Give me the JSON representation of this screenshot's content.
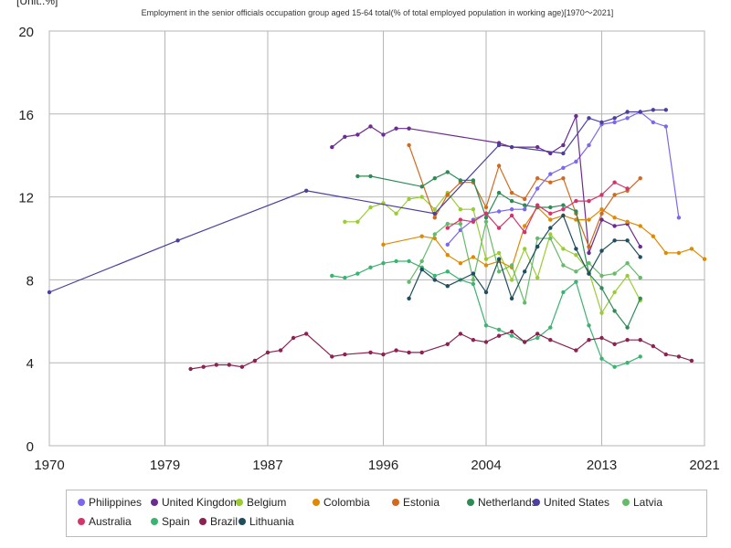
{
  "unit_label": "[Unit:.%]",
  "chart_data": {
    "type": "line",
    "title": "Employment in the senior officials occupation group aged 15-64 total(% of total employed population in working age)[1970～2021]",
    "xlim": [
      1970,
      2021
    ],
    "ylim": [
      0,
      20
    ],
    "x_ticks": [
      1970,
      1979,
      1987,
      1996,
      2004,
      2013,
      2021
    ],
    "y_ticks": [
      0,
      4,
      8,
      12,
      16,
      20
    ],
    "grid": true,
    "legend_position": "bottom",
    "series": [
      {
        "name": "Philippines",
        "color": "#7b68ee",
        "points": [
          [
            2001,
            9.7
          ],
          [
            2002,
            10.4
          ],
          [
            2003,
            10.9
          ],
          [
            2004,
            11.2
          ],
          [
            2005,
            11.3
          ],
          [
            2006,
            11.4
          ],
          [
            2007,
            11.4
          ],
          [
            2008,
            12.4
          ],
          [
            2009,
            13.1
          ],
          [
            2010,
            13.4
          ],
          [
            2011,
            13.7
          ],
          [
            2012,
            14.5
          ],
          [
            2013,
            15.5
          ],
          [
            2014,
            15.6
          ],
          [
            2015,
            15.8
          ],
          [
            2016,
            16.1
          ],
          [
            2017,
            15.6
          ],
          [
            2018,
            15.4
          ],
          [
            2019,
            11.0
          ]
        ]
      },
      {
        "name": "United Kingdom",
        "color": "#6a2c91",
        "points": [
          [
            1992,
            14.4
          ],
          [
            1993,
            14.9
          ],
          [
            1994,
            15.0
          ],
          [
            1995,
            15.4
          ],
          [
            1996,
            15.0
          ],
          [
            1997,
            15.3
          ],
          [
            1998,
            15.3
          ],
          [
            2005,
            14.6
          ],
          [
            2006,
            14.4
          ],
          [
            2008,
            14.4
          ],
          [
            2009,
            14.1
          ],
          [
            2010,
            14.5
          ],
          [
            2011,
            15.9
          ],
          [
            2012,
            9.3
          ],
          [
            2013,
            10.9
          ],
          [
            2014,
            10.6
          ],
          [
            2015,
            10.7
          ],
          [
            2016,
            9.6
          ]
        ]
      },
      {
        "name": "Belgium",
        "color": "#9acd32",
        "points": [
          [
            1993,
            10.8
          ],
          [
            1994,
            10.8
          ],
          [
            1995,
            11.5
          ],
          [
            1996,
            11.7
          ],
          [
            1997,
            11.2
          ],
          [
            1998,
            11.9
          ],
          [
            1999,
            12.0
          ],
          [
            2000,
            11.4
          ],
          [
            2001,
            12.2
          ],
          [
            2002,
            11.4
          ],
          [
            2003,
            11.4
          ],
          [
            2004,
            9.0
          ],
          [
            2005,
            9.3
          ],
          [
            2006,
            8.0
          ],
          [
            2007,
            9.5
          ],
          [
            2008,
            8.1
          ],
          [
            2009,
            10.2
          ],
          [
            2010,
            9.5
          ],
          [
            2011,
            9.2
          ],
          [
            2012,
            8.4
          ],
          [
            2013,
            6.4
          ],
          [
            2014,
            7.4
          ],
          [
            2015,
            8.2
          ],
          [
            2016,
            7.0
          ]
        ]
      },
      {
        "name": "Colombia",
        "color": "#e08a00",
        "points": [
          [
            1996,
            9.7
          ],
          [
            1999,
            10.1
          ],
          [
            2000,
            10.0
          ],
          [
            2001,
            9.2
          ],
          [
            2002,
            8.8
          ],
          [
            2003,
            9.1
          ],
          [
            2004,
            8.7
          ],
          [
            2005,
            8.9
          ],
          [
            2006,
            8.6
          ],
          [
            2007,
            10.6
          ],
          [
            2008,
            11.5
          ],
          [
            2009,
            10.9
          ],
          [
            2010,
            11.1
          ],
          [
            2011,
            10.9
          ],
          [
            2012,
            10.9
          ],
          [
            2013,
            11.4
          ],
          [
            2014,
            11.0
          ],
          [
            2015,
            10.8
          ],
          [
            2016,
            10.6
          ],
          [
            2017,
            10.1
          ],
          [
            2018,
            9.3
          ],
          [
            2019,
            9.3
          ],
          [
            2020,
            9.5
          ],
          [
            2021,
            9.0
          ]
        ]
      },
      {
        "name": "Estonia",
        "color": "#d2691e",
        "points": [
          [
            1998,
            14.5
          ],
          [
            2000,
            11.0
          ],
          [
            2001,
            12.1
          ],
          [
            2002,
            12.7
          ],
          [
            2003,
            12.7
          ],
          [
            2004,
            11.5
          ],
          [
            2005,
            13.5
          ],
          [
            2006,
            12.2
          ],
          [
            2007,
            11.9
          ],
          [
            2008,
            12.9
          ],
          [
            2009,
            12.7
          ],
          [
            2010,
            12.9
          ],
          [
            2011,
            11.2
          ],
          [
            2012,
            9.6
          ],
          [
            2013,
            11.2
          ],
          [
            2014,
            12.1
          ],
          [
            2015,
            12.3
          ],
          [
            2016,
            12.9
          ]
        ]
      },
      {
        "name": "Netherlands",
        "color": "#2e8b57",
        "points": [
          [
            1994,
            13.0
          ],
          [
            1995,
            13.0
          ],
          [
            1999,
            12.5
          ],
          [
            2000,
            12.9
          ],
          [
            2001,
            13.2
          ],
          [
            2002,
            12.8
          ],
          [
            2003,
            12.8
          ],
          [
            2004,
            11.0
          ],
          [
            2005,
            12.2
          ],
          [
            2006,
            11.8
          ],
          [
            2007,
            11.6
          ],
          [
            2008,
            11.5
          ],
          [
            2009,
            11.5
          ],
          [
            2010,
            11.6
          ],
          [
            2011,
            11.3
          ],
          [
            2012,
            8.3
          ],
          [
            2013,
            7.6
          ],
          [
            2014,
            6.5
          ],
          [
            2015,
            5.7
          ],
          [
            2016,
            7.1
          ]
        ]
      },
      {
        "name": "United States",
        "color": "#4b3f9f",
        "points": [
          [
            1970,
            7.4
          ],
          [
            1980,
            9.9
          ],
          [
            1990,
            12.3
          ],
          [
            2000,
            11.2
          ],
          [
            2005,
            14.5
          ],
          [
            2010,
            14.1
          ],
          [
            2012,
            15.8
          ],
          [
            2013,
            15.6
          ],
          [
            2014,
            15.8
          ],
          [
            2015,
            16.1
          ],
          [
            2016,
            16.1
          ],
          [
            2017,
            16.2
          ],
          [
            2018,
            16.2
          ]
        ]
      },
      {
        "name": "Latvia",
        "color": "#66bb6a",
        "points": [
          [
            1998,
            7.9
          ],
          [
            1999,
            8.9
          ],
          [
            2000,
            10.2
          ],
          [
            2001,
            10.7
          ],
          [
            2002,
            10.7
          ],
          [
            2003,
            8.0
          ],
          [
            2004,
            10.8
          ],
          [
            2005,
            8.4
          ],
          [
            2006,
            8.7
          ],
          [
            2007,
            6.9
          ],
          [
            2008,
            10.0
          ],
          [
            2009,
            10.0
          ],
          [
            2010,
            8.7
          ],
          [
            2011,
            8.4
          ],
          [
            2012,
            8.8
          ],
          [
            2013,
            8.2
          ],
          [
            2014,
            8.3
          ],
          [
            2015,
            8.8
          ],
          [
            2016,
            8.1
          ]
        ]
      },
      {
        "name": "Australia",
        "color": "#d6336c",
        "points": [
          [
            2001,
            10.5
          ],
          [
            2002,
            10.9
          ],
          [
            2003,
            10.8
          ],
          [
            2004,
            11.2
          ],
          [
            2005,
            10.5
          ],
          [
            2006,
            11.1
          ],
          [
            2007,
            10.3
          ],
          [
            2008,
            11.6
          ],
          [
            2009,
            11.2
          ],
          [
            2010,
            11.4
          ],
          [
            2011,
            11.8
          ],
          [
            2012,
            11.8
          ],
          [
            2013,
            12.1
          ],
          [
            2014,
            12.7
          ],
          [
            2015,
            12.4
          ]
        ]
      },
      {
        "name": "Spain",
        "color": "#3cb371",
        "points": [
          [
            1992,
            8.2
          ],
          [
            1993,
            8.1
          ],
          [
            1994,
            8.3
          ],
          [
            1995,
            8.6
          ],
          [
            1996,
            8.8
          ],
          [
            1997,
            8.9
          ],
          [
            1998,
            8.9
          ],
          [
            1999,
            8.6
          ],
          [
            2000,
            8.2
          ],
          [
            2001,
            8.4
          ],
          [
            2002,
            8.0
          ],
          [
            2003,
            7.8
          ],
          [
            2004,
            5.8
          ],
          [
            2005,
            5.6
          ],
          [
            2006,
            5.3
          ],
          [
            2007,
            5.0
          ],
          [
            2008,
            5.2
          ],
          [
            2009,
            5.7
          ],
          [
            2010,
            7.4
          ],
          [
            2011,
            7.9
          ],
          [
            2012,
            5.8
          ],
          [
            2013,
            4.2
          ],
          [
            2014,
            3.8
          ],
          [
            2015,
            4.0
          ],
          [
            2016,
            4.3
          ]
        ]
      },
      {
        "name": "Brazil",
        "color": "#8b2252",
        "points": [
          [
            1981,
            3.7
          ],
          [
            1982,
            3.8
          ],
          [
            1983,
            3.9
          ],
          [
            1984,
            3.9
          ],
          [
            1985,
            3.8
          ],
          [
            1986,
            4.1
          ],
          [
            1987,
            4.5
          ],
          [
            1988,
            4.6
          ],
          [
            1989,
            5.2
          ],
          [
            1990,
            5.4
          ],
          [
            1992,
            4.3
          ],
          [
            1993,
            4.4
          ],
          [
            1995,
            4.5
          ],
          [
            1996,
            4.4
          ],
          [
            1997,
            4.6
          ],
          [
            1998,
            4.5
          ],
          [
            1999,
            4.5
          ],
          [
            2001,
            4.9
          ],
          [
            2002,
            5.4
          ],
          [
            2003,
            5.1
          ],
          [
            2004,
            5.0
          ],
          [
            2005,
            5.3
          ],
          [
            2006,
            5.5
          ],
          [
            2007,
            5.0
          ],
          [
            2008,
            5.4
          ],
          [
            2009,
            5.1
          ],
          [
            2011,
            4.6
          ],
          [
            2012,
            5.1
          ],
          [
            2013,
            5.2
          ],
          [
            2014,
            4.9
          ],
          [
            2015,
            5.1
          ],
          [
            2016,
            5.1
          ],
          [
            2017,
            4.8
          ],
          [
            2018,
            4.4
          ],
          [
            2019,
            4.3
          ],
          [
            2020,
            4.1
          ]
        ]
      },
      {
        "name": "Lithuania",
        "color": "#1f4e5f",
        "points": [
          [
            1998,
            7.1
          ],
          [
            1999,
            8.5
          ],
          [
            2000,
            8.0
          ],
          [
            2001,
            7.7
          ],
          [
            2003,
            8.3
          ],
          [
            2004,
            7.4
          ],
          [
            2005,
            9.0
          ],
          [
            2006,
            7.1
          ],
          [
            2007,
            8.4
          ],
          [
            2008,
            9.6
          ],
          [
            2009,
            10.5
          ],
          [
            2010,
            11.1
          ],
          [
            2011,
            9.5
          ],
          [
            2012,
            8.3
          ],
          [
            2013,
            9.4
          ],
          [
            2014,
            9.9
          ],
          [
            2015,
            9.9
          ],
          [
            2016,
            9.1
          ]
        ]
      }
    ]
  }
}
